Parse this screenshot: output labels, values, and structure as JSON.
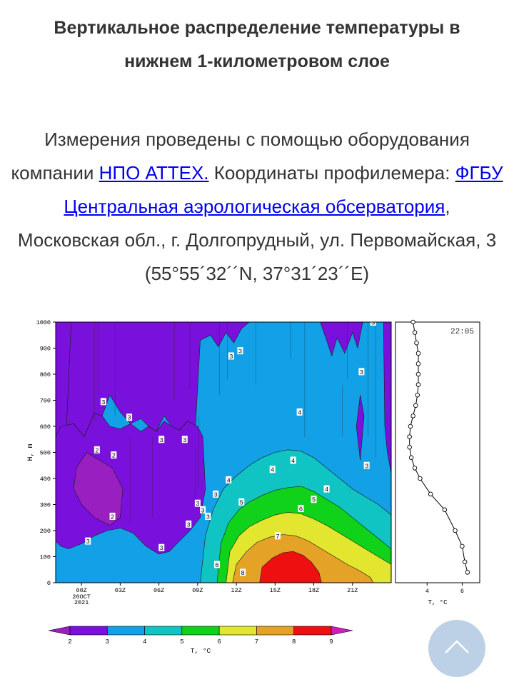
{
  "page": {
    "title": "Вертикальное распределение температуры в нижнем 1-километровом слое",
    "intro": {
      "part1": "Измерения проведены с помощью оборудования компании ",
      "link1": "НПО АТТЕХ.",
      "part2": "  Координаты профилемера: ",
      "link2": "ФГБУ Центральная аэрологическая обсерватория",
      "part3": ", Московская обл., г. Долгопрудный, ул. Первомайская, 3 (55°55´32´´N, 37°31´23´´E)"
    }
  },
  "scroll_top": {
    "icon": "chevron-up-icon"
  },
  "chart_data": [
    {
      "type": "heatmap",
      "title": "",
      "ylabel": "H, m",
      "ylim": [
        0,
        1000
      ],
      "y_ticks": [
        "0",
        "100",
        "200",
        "300",
        "400",
        "500",
        "600",
        "700",
        "800",
        "900",
        "1000"
      ],
      "x_ticks": [
        "00Z",
        "03Z",
        "06Z",
        "09Z",
        "12Z",
        "15Z",
        "18Z",
        "21Z"
      ],
      "x_date_label": [
        "20OCT",
        "2021"
      ],
      "xlim_hours": [
        -2,
        24
      ],
      "color_levels": [
        {
          "from": 1,
          "to": 2,
          "color": "#9a1fc0"
        },
        {
          "from": 2,
          "to": 3,
          "color": "#7a10dc"
        },
        {
          "from": 3,
          "to": 4,
          "color": "#12a0e6"
        },
        {
          "from": 4,
          "to": 5,
          "color": "#10c4c4"
        },
        {
          "from": 5,
          "to": 6,
          "color": "#10d21a"
        },
        {
          "from": 6,
          "to": 7,
          "color": "#e2e62e"
        },
        {
          "from": 7,
          "to": 8,
          "color": "#e4a226"
        },
        {
          "from": 8,
          "to": 9,
          "color": "#ee1010"
        }
      ],
      "contour_labels": [
        {
          "h": 22.6,
          "z": 1000,
          "text": "3"
        },
        {
          "h": 11.6,
          "z": 870,
          "text": "3"
        },
        {
          "h": 12.3,
          "z": 890,
          "text": "3"
        },
        {
          "h": 21.7,
          "z": 810,
          "text": "3"
        },
        {
          "h": 1.7,
          "z": 695,
          "text": "3"
        },
        {
          "h": 3.7,
          "z": 635,
          "text": "3"
        },
        {
          "h": 6.2,
          "z": 550,
          "text": "3"
        },
        {
          "h": 8.0,
          "z": 550,
          "text": "3"
        },
        {
          "h": 1.2,
          "z": 510,
          "text": "2"
        },
        {
          "h": 2.5,
          "z": 490,
          "text": "2"
        },
        {
          "h": 2.4,
          "z": 255,
          "text": "2"
        },
        {
          "h": 0.5,
          "z": 160,
          "text": "3"
        },
        {
          "h": 6.2,
          "z": 135,
          "text": "3"
        },
        {
          "h": 9.0,
          "z": 305,
          "text": "3"
        },
        {
          "h": 9.4,
          "z": 280,
          "text": "3"
        },
        {
          "h": 9.8,
          "z": 255,
          "text": "3"
        },
        {
          "h": 10.4,
          "z": 340,
          "text": "3"
        },
        {
          "h": 8.3,
          "z": 225,
          "text": "3"
        },
        {
          "h": 22.1,
          "z": 450,
          "text": "3"
        },
        {
          "h": 16.9,
          "z": 655,
          "text": "4"
        },
        {
          "h": 16.4,
          "z": 470,
          "text": "4"
        },
        {
          "h": 14.8,
          "z": 435,
          "text": "4"
        },
        {
          "h": 11.4,
          "z": 395,
          "text": "4"
        },
        {
          "h": 19.0,
          "z": 360,
          "text": "4"
        },
        {
          "h": 12.4,
          "z": 310,
          "text": "5"
        },
        {
          "h": 18.0,
          "z": 320,
          "text": "5"
        },
        {
          "h": 17.0,
          "z": 285,
          "text": "6"
        },
        {
          "h": 10.5,
          "z": 70,
          "text": "6"
        },
        {
          "h": 15.2,
          "z": 180,
          "text": "7"
        },
        {
          "h": 12.5,
          "z": 40,
          "text": "8"
        }
      ]
    },
    {
      "type": "line",
      "title": "22:05",
      "xlabel": "T, °C",
      "x_ticks": [
        "4",
        "6"
      ],
      "ylim": [
        0,
        1000
      ],
      "x_values": [
        3.2,
        3.3,
        3.4,
        3.5,
        3.5,
        3.5,
        3.5,
        3.45,
        3.35,
        3.2,
        3.05,
        3.0,
        3.0,
        3.1,
        3.3,
        3.6,
        4.2,
        5.0,
        5.6,
        6.0,
        6.15,
        6.3
      ],
      "y_values": [
        1000,
        960,
        920,
        880,
        840,
        800,
        760,
        720,
        680,
        640,
        600,
        560,
        520,
        480,
        440,
        400,
        340,
        280,
        200,
        140,
        80,
        40
      ],
      "line_color": "#000000"
    },
    {
      "type": "colorbar",
      "xlabel": "T, °C",
      "tick_labels": [
        "2",
        "3",
        "4",
        "5",
        "6",
        "7",
        "8",
        "9"
      ]
    }
  ]
}
